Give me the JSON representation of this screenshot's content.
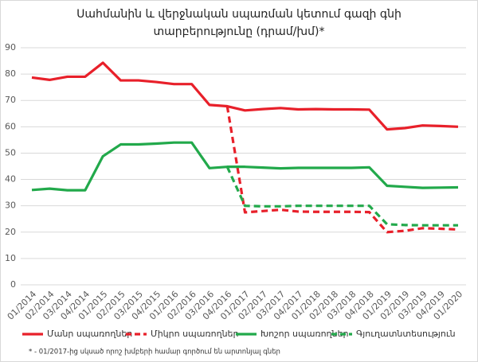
{
  "chart_data": {
    "type": "line",
    "title": [
      "Սահմանին և վերջնական սպառման կետում գազի գնի",
      "տարբերությունը (դրամ/խմ)*"
    ],
    "footnote": "* - 01/2017-ից սկսած որոշ խմբերի համար գործում են արտոնյալ գներ",
    "categories": [
      "01/2014",
      "02/2014",
      "03/2014",
      "04/2014",
      "01/2015",
      "02/2015",
      "03/2015",
      "04/2015",
      "01/2016",
      "02/2016",
      "03/2016",
      "04/2016",
      "01/2017",
      "02/2017",
      "03/2017",
      "04/2017",
      "01/2018",
      "02/2018",
      "03/2018",
      "04/2018",
      "01/2019",
      "02/2019",
      "03/2019",
      "04/2019",
      "01/2020"
    ],
    "series": [
      {
        "name": "Մանր սպառողներ",
        "color": "#e8202a",
        "style": "solid",
        "values": [
          78.7,
          77.8,
          79,
          79,
          84.3,
          77.6,
          77.6,
          77,
          76.2,
          76.2,
          68.3,
          67.8,
          66.2,
          66.7,
          67.1,
          66.6,
          66.7,
          66.6,
          66.6,
          66.5,
          59,
          59.5,
          60.5,
          60.3,
          60
        ]
      },
      {
        "name": "Միկրո սպառողներ",
        "color": "#e8202a",
        "style": "dashed",
        "values": [
          null,
          null,
          null,
          null,
          null,
          null,
          null,
          null,
          null,
          null,
          null,
          67.8,
          27.5,
          28,
          28.5,
          27.8,
          27.7,
          27.7,
          27.7,
          27.6,
          20,
          20.5,
          21.5,
          21.3,
          21
        ]
      },
      {
        "name": "Խոշոր սպառողներ",
        "color": "#22a94b",
        "style": "solid",
        "values": [
          36,
          36.5,
          35.9,
          35.9,
          48.8,
          53.3,
          53.3,
          53.6,
          54,
          54,
          44.3,
          44.8,
          44.8,
          44.5,
          44.2,
          44.4,
          44.4,
          44.4,
          44.4,
          44.6,
          37.6,
          37.2,
          36.8,
          36.9,
          37
        ]
      },
      {
        "name": "Գյուղատնտեսություն",
        "color": "#22a94b",
        "style": "dashed",
        "values": [
          null,
          null,
          null,
          null,
          null,
          null,
          null,
          null,
          null,
          null,
          null,
          44.8,
          30,
          29.8,
          29.8,
          30,
          30,
          30,
          30,
          30,
          23,
          22.7,
          22.6,
          22.6,
          22.6
        ]
      }
    ],
    "ylim": [
      0,
      90
    ],
    "yticks": [
      0,
      10,
      20,
      30,
      40,
      50,
      60,
      70,
      80,
      90
    ],
    "grid": true
  }
}
